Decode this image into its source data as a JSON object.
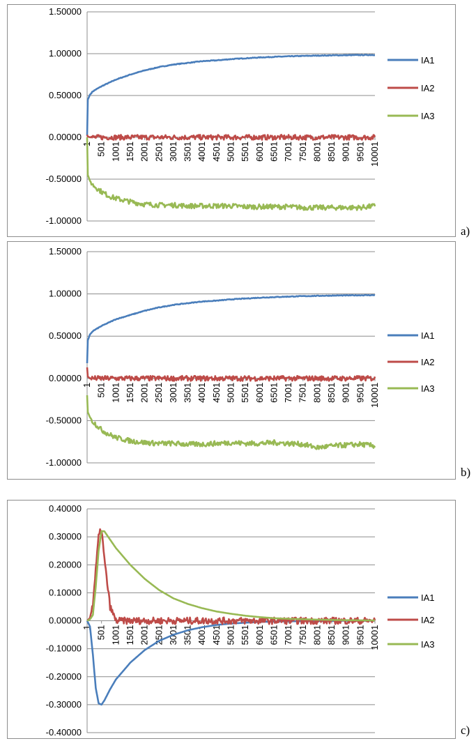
{
  "chart_data": [
    {
      "type": "line",
      "panel_label": "a)",
      "ylim": [
        -1.0,
        1.5
      ],
      "yticks": [
        "1.50000",
        "1.00000",
        "0.50000",
        "0.00000",
        "-0.50000",
        "-1.00000"
      ],
      "ytick_values": [
        1.5,
        1.0,
        0.5,
        0.0,
        -0.5,
        -1.0
      ],
      "xtick_labels": [
        "1",
        "501",
        "1001",
        "1501",
        "2001",
        "2501",
        "3001",
        "3501",
        "4001",
        "4501",
        "5001",
        "5501",
        "6001",
        "6501",
        "7001",
        "7501",
        "8001",
        "8501",
        "9001",
        "9501",
        "10001"
      ],
      "x": [
        1,
        25,
        100,
        200,
        350,
        500,
        750,
        1000,
        1500,
        2000,
        2500,
        3000,
        3500,
        4000,
        4500,
        5000,
        5500,
        6000,
        6500,
        7000,
        7500,
        8000,
        8500,
        9000,
        9500,
        10001
      ],
      "grid": true,
      "legend": "right",
      "series": [
        {
          "name": "IA1",
          "color": "#4a7ebb",
          "noise": 0.004,
          "values": [
            0.02,
            0.45,
            0.51,
            0.55,
            0.58,
            0.61,
            0.65,
            0.69,
            0.75,
            0.8,
            0.84,
            0.87,
            0.89,
            0.91,
            0.92,
            0.935,
            0.945,
            0.955,
            0.962,
            0.968,
            0.973,
            0.977,
            0.98,
            0.982,
            0.984,
            0.985
          ]
        },
        {
          "name": "IA2",
          "color": "#be4b48",
          "noise": 0.03,
          "values": [
            0.03,
            0.01,
            0.0,
            0.0,
            0.0,
            0.0,
            0.0,
            0.0,
            0.0,
            0.0,
            0.0,
            0.0,
            0.0,
            0.0,
            0.0,
            0.0,
            0.0,
            0.0,
            0.0,
            0.0,
            0.0,
            0.0,
            0.0,
            0.0,
            0.0,
            0.0
          ]
        },
        {
          "name": "IA3",
          "color": "#98b954",
          "noise": 0.03,
          "values": [
            0.0,
            -0.45,
            -0.52,
            -0.57,
            -0.61,
            -0.65,
            -0.7,
            -0.73,
            -0.77,
            -0.8,
            -0.81,
            -0.81,
            -0.82,
            -0.82,
            -0.82,
            -0.82,
            -0.83,
            -0.83,
            -0.83,
            -0.83,
            -0.84,
            -0.84,
            -0.84,
            -0.84,
            -0.84,
            -0.82
          ]
        }
      ]
    },
    {
      "type": "line",
      "panel_label": "b)",
      "ylim": [
        -1.0,
        1.5
      ],
      "yticks": [
        "1.50000",
        "1.00000",
        "0.50000",
        "0.00000",
        "-0.50000",
        "-1.00000"
      ],
      "ytick_values": [
        1.5,
        1.0,
        0.5,
        0.0,
        -0.5,
        -1.0
      ],
      "xtick_labels": [
        "1",
        "501",
        "1001",
        "1501",
        "2001",
        "2501",
        "3001",
        "3501",
        "4001",
        "4501",
        "5001",
        "5501",
        "6001",
        "6501",
        "7001",
        "7501",
        "8001",
        "8501",
        "9001",
        "9501",
        "10001"
      ],
      "x": [
        1,
        25,
        100,
        200,
        350,
        500,
        750,
        1000,
        1500,
        2000,
        2500,
        3000,
        3500,
        4000,
        4500,
        5000,
        5500,
        6000,
        6500,
        7000,
        7500,
        8000,
        8500,
        9000,
        9500,
        10001
      ],
      "grid": true,
      "legend": "right",
      "series": [
        {
          "name": "IA1",
          "color": "#4a7ebb",
          "noise": 0.004,
          "values": [
            0.18,
            0.45,
            0.52,
            0.56,
            0.59,
            0.62,
            0.66,
            0.7,
            0.75,
            0.8,
            0.84,
            0.87,
            0.89,
            0.91,
            0.92,
            0.935,
            0.945,
            0.955,
            0.962,
            0.968,
            0.973,
            0.977,
            0.98,
            0.982,
            0.984,
            0.985
          ]
        },
        {
          "name": "IA2",
          "color": "#be4b48",
          "noise": 0.03,
          "values": [
            0.13,
            0.02,
            0.0,
            0.0,
            0.0,
            0.0,
            0.0,
            0.0,
            0.0,
            0.0,
            0.0,
            0.0,
            0.0,
            0.0,
            0.0,
            0.0,
            0.0,
            0.0,
            0.0,
            0.0,
            0.0,
            0.0,
            0.0,
            0.0,
            0.0,
            0.0
          ]
        },
        {
          "name": "IA3",
          "color": "#98b954",
          "noise": 0.03,
          "values": [
            -0.2,
            -0.4,
            -0.46,
            -0.51,
            -0.56,
            -0.61,
            -0.66,
            -0.7,
            -0.74,
            -0.76,
            -0.77,
            -0.77,
            -0.78,
            -0.78,
            -0.77,
            -0.76,
            -0.77,
            -0.77,
            -0.76,
            -0.77,
            -0.78,
            -0.82,
            -0.8,
            -0.79,
            -0.78,
            -0.8
          ]
        }
      ]
    },
    {
      "type": "line",
      "panel_label": "c)",
      "ylim": [
        -0.4,
        0.4
      ],
      "yticks": [
        "0.40000",
        "0.30000",
        "0.20000",
        "0.10000",
        "0.00000",
        "-0.10000",
        "-0.20000",
        "-0.30000",
        "-0.40000"
      ],
      "ytick_values": [
        0.4,
        0.3,
        0.2,
        0.1,
        0.0,
        -0.1,
        -0.2,
        -0.3,
        -0.4
      ],
      "xtick_labels": [
        "1",
        "501",
        "1001",
        "1501",
        "2001",
        "2501",
        "3001",
        "3501",
        "4001",
        "4501",
        "5001",
        "5501",
        "6001",
        "6501",
        "7001",
        "7501",
        "8001",
        "8501",
        "9001",
        "9501",
        "10001"
      ],
      "x": [
        1,
        100,
        200,
        300,
        400,
        500,
        600,
        800,
        1000,
        1500,
        2000,
        2500,
        3000,
        3500,
        4000,
        4500,
        5000,
        5500,
        6000,
        6500,
        7000,
        8000,
        9000,
        10001
      ],
      "grid": true,
      "legend": "right",
      "series": [
        {
          "name": "IA1",
          "color": "#4a7ebb",
          "noise": 0.0,
          "values": [
            0.0,
            -0.02,
            -0.12,
            -0.24,
            -0.295,
            -0.3,
            -0.285,
            -0.245,
            -0.21,
            -0.15,
            -0.105,
            -0.072,
            -0.05,
            -0.034,
            -0.023,
            -0.015,
            -0.01,
            -0.007,
            -0.004,
            -0.003,
            -0.002,
            -0.001,
            0.0,
            0.0
          ]
        },
        {
          "name": "IA2",
          "color": "#be4b48",
          "noise": 0.012,
          "values": [
            0.0,
            0.01,
            0.06,
            0.18,
            0.3,
            0.33,
            0.22,
            0.05,
            0.0,
            0.0,
            0.0,
            0.0,
            0.0,
            0.0,
            0.0,
            0.0,
            0.0,
            0.0,
            0.0,
            0.0,
            0.0,
            0.0,
            0.0,
            0.0
          ]
        },
        {
          "name": "IA3",
          "color": "#98b954",
          "noise": 0.0,
          "values": [
            0.0,
            0.005,
            0.02,
            0.12,
            0.25,
            0.32,
            0.32,
            0.29,
            0.26,
            0.2,
            0.15,
            0.11,
            0.08,
            0.06,
            0.045,
            0.033,
            0.025,
            0.018,
            0.013,
            0.009,
            0.007,
            0.004,
            0.002,
            0.001
          ]
        }
      ]
    }
  ]
}
